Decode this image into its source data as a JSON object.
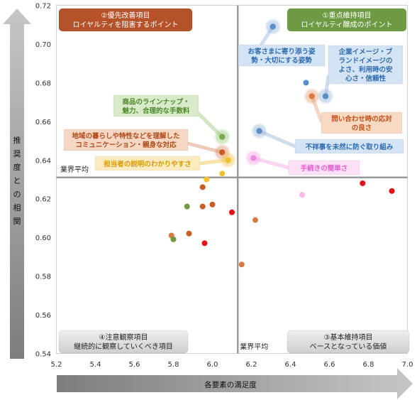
{
  "chart_data": {
    "type": "scatter",
    "x_axis": {
      "label": "各要素の満足度",
      "min": 5.2,
      "max": 7.0,
      "ticks": [
        "5.2",
        "5.4",
        "5.6",
        "5.8",
        "6.0",
        "6.2",
        "6.4",
        "6.6",
        "6.8",
        "7.0"
      ]
    },
    "y_axis": {
      "label": "推奨度との相関",
      "min": 0.54,
      "max": 0.72,
      "ticks": [
        "0.54",
        "0.56",
        "0.58",
        "0.60",
        "0.62",
        "0.64",
        "0.66",
        "0.68",
        "0.70",
        "0.72"
      ]
    },
    "average_lines": {
      "x": 6.13,
      "y": 0.631,
      "x_label": "業界平均",
      "y_label": "業界平均"
    },
    "quadrants": [
      {
        "title": "②優先改善項目",
        "subtitle": "ロイヤルティを阻害するポイント",
        "color": "#b5522a"
      },
      {
        "title": "①重点維持項目",
        "subtitle": "ロイヤルティ醸成のポイント",
        "color": "#6e9a44"
      },
      {
        "title": "④注意観察項目",
        "subtitle": "継続的に観察していくべき項目",
        "color": "#d9d9d9"
      },
      {
        "title": "③基本維持項目",
        "subtitle": "ベースとなっている価値",
        "color": "#d9d9d9"
      }
    ],
    "labeled_points": [
      {
        "lines": [
          "お客さまに寄り添う姿",
          "勢・大切にする姿勢"
        ],
        "x": 6.31,
        "y": 0.709,
        "color": "#5b8dc9"
      },
      {
        "lines": [
          "企業イメージ・ブ",
          "ランドイメージの",
          "よさ、利用時の安",
          "心さ・信頼性"
        ],
        "x": 6.58,
        "y": 0.673,
        "color": "#5b8dc9"
      },
      {
        "lines": [
          "問い合わせ時の応対",
          "の良さ"
        ],
        "x": 6.51,
        "y": 0.673,
        "color": "#d97a3f"
      },
      {
        "lines": [
          "不祥事を未然に防ぐ取り組み"
        ],
        "x": 6.24,
        "y": 0.655,
        "color": "#5b8dc9"
      },
      {
        "lines": [
          "商品のラインナップ・",
          "魅力、合理的な手数料"
        ],
        "x": 6.05,
        "y": 0.652,
        "color": "#7aab52"
      },
      {
        "lines": [
          "地域の暮らしや特性などを理解した",
          "コミュニケーション・親身な対応"
        ],
        "x": 6.05,
        "y": 0.644,
        "color": "#c85d28"
      },
      {
        "lines": [
          "担当者の説明のわかりやすさ"
        ],
        "x": 6.08,
        "y": 0.64,
        "color": "#f2c12e"
      },
      {
        "lines": [
          "手続きの簡単さ"
        ],
        "x": 6.21,
        "y": 0.641,
        "color": "#f08ce0"
      }
    ],
    "points": [
      {
        "x": 6.48,
        "y": 0.68,
        "color": "#5b8dc9"
      },
      {
        "x": 6.05,
        "y": 0.633,
        "color": "#f2c12e"
      },
      {
        "x": 5.97,
        "y": 0.63,
        "color": "#f2c12e"
      },
      {
        "x": 5.95,
        "y": 0.626,
        "color": "#c85d28"
      },
      {
        "x": 6.0,
        "y": 0.617,
        "color": "#c85d28"
      },
      {
        "x": 5.95,
        "y": 0.616,
        "color": "#c85d28"
      },
      {
        "x": 5.87,
        "y": 0.616,
        "color": "#6e9a44"
      },
      {
        "x": 6.1,
        "y": 0.613,
        "color": "#e81010"
      },
      {
        "x": 6.22,
        "y": 0.609,
        "color": "#d97a3f"
      },
      {
        "x": 5.79,
        "y": 0.601,
        "color": "#d97a3f"
      },
      {
        "x": 5.8,
        "y": 0.599,
        "color": "#6e9a44"
      },
      {
        "x": 5.88,
        "y": 0.602,
        "color": "#c85d28"
      },
      {
        "x": 5.96,
        "y": 0.597,
        "color": "#e81010"
      },
      {
        "x": 6.15,
        "y": 0.586,
        "color": "#d97a3f"
      },
      {
        "x": 6.46,
        "y": 0.622,
        "color": "#f8b8ec"
      },
      {
        "x": 6.77,
        "y": 0.628,
        "color": "#e81010"
      },
      {
        "x": 6.92,
        "y": 0.624,
        "color": "#e81010"
      }
    ],
    "grid": false,
    "legend": "none"
  }
}
